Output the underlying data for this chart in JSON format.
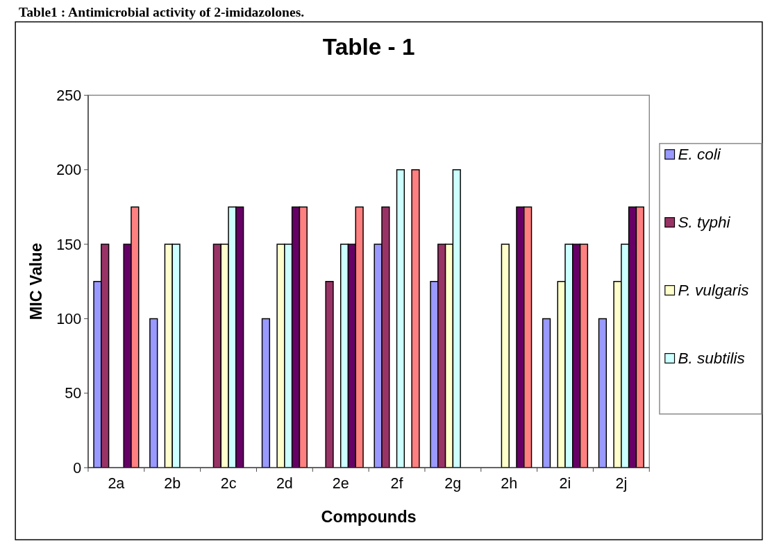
{
  "chart_data": {
    "type": "bar",
    "title": "Table - 1",
    "subtitle": "Table1 : Antimicrobial activity of 2-imidazolones.",
    "xlabel": "Compounds",
    "ylabel": "MIC Value",
    "categories": [
      "2a",
      "2b",
      "2c",
      "2d",
      "2e",
      "2f",
      "2g",
      "2h",
      "2i",
      "2j"
    ],
    "series": [
      {
        "name": "E. coli",
        "color": "#9999ff",
        "values": [
          125,
          100,
          null,
          100,
          null,
          150,
          125,
          null,
          100,
          100
        ]
      },
      {
        "name": "S. typhi",
        "color": "#993366",
        "values": [
          150,
          null,
          150,
          null,
          125,
          175,
          150,
          null,
          null,
          null
        ]
      },
      {
        "name": "P. vulgaris",
        "color": "#ffffcc",
        "values": [
          null,
          150,
          150,
          150,
          null,
          null,
          150,
          150,
          125,
          125
        ]
      },
      {
        "name": "B. subtilis",
        "color": "#ccffff",
        "values": [
          null,
          150,
          175,
          150,
          150,
          200,
          200,
          null,
          150,
          150
        ]
      },
      {
        "color": "#660066",
        "values": [
          150,
          null,
          175,
          175,
          150,
          null,
          null,
          175,
          150,
          175
        ]
      },
      {
        "color": "#ff8080",
        "values": [
          175,
          null,
          null,
          175,
          175,
          200,
          null,
          175,
          150,
          175
        ]
      }
    ],
    "ylim": [
      0,
      250
    ],
    "yticks": [
      0,
      50,
      100,
      150,
      200,
      250
    ],
    "grid": false,
    "legend": "right"
  }
}
